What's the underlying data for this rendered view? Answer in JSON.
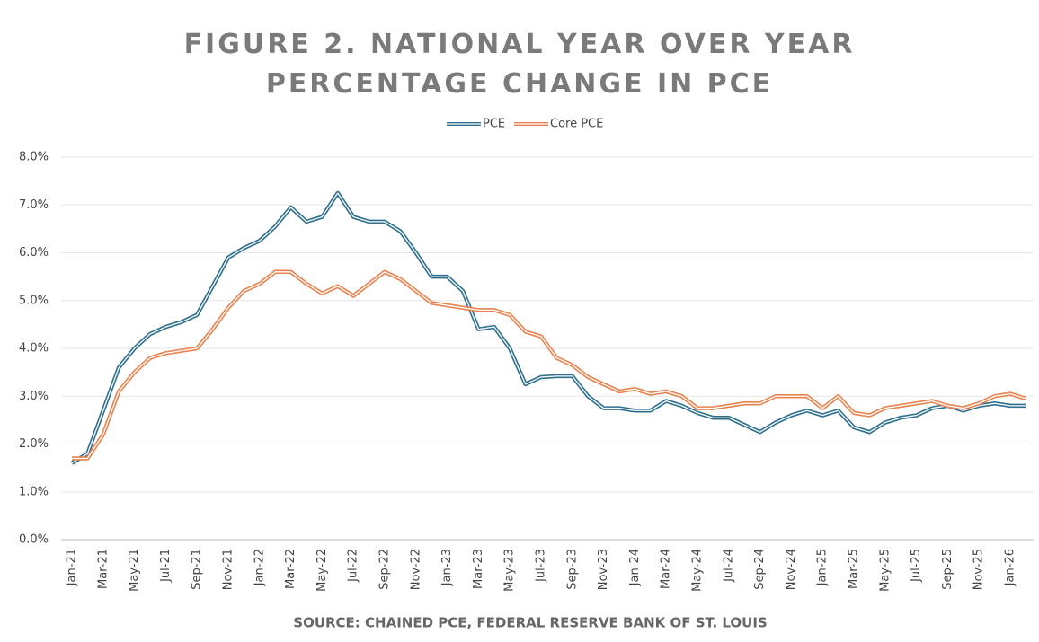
{
  "chart_data": {
    "type": "line",
    "title": "FIGURE 2. NATIONAL YEAR OVER YEAR PERCENTAGE CHANGE IN PCE",
    "source": "SOURCE: CHAINED PCE, FEDERAL RESERVE BANK OF ST. LOUIS",
    "categories": [
      "Jan-21",
      null,
      "Mar-21",
      null,
      "May-21",
      null,
      "Jul-21",
      null,
      "Sep-21",
      null,
      "Nov-21",
      null,
      "Jan-22",
      null,
      "Mar-22",
      null,
      "May-22",
      null,
      "Jul-22",
      null,
      "Sep-22",
      null,
      "Nov-22",
      null,
      "Jan-23",
      null,
      "Mar-23",
      null,
      "May-23",
      null,
      "Jul-23",
      null,
      "Sep-23",
      null,
      "Nov-23",
      null,
      "Jan-24",
      null,
      "Mar-24",
      null,
      "May-24",
      null,
      "Jul-24",
      null,
      "Sep-24",
      null,
      "Nov-24",
      null,
      "Jan-25",
      null,
      "Mar-25",
      null,
      "May-25",
      null,
      "Jul-25",
      null,
      "Sep-25",
      null,
      "Nov-25",
      null,
      "Jan-26",
      null
    ],
    "series": [
      {
        "name": "PCE",
        "color": "#2e6f8e",
        "values": [
          1.6,
          1.8,
          2.7,
          3.6,
          4.0,
          4.3,
          4.45,
          4.55,
          4.7,
          5.3,
          5.9,
          6.1,
          6.25,
          6.55,
          6.95,
          6.65,
          6.75,
          7.25,
          6.75,
          6.65,
          6.65,
          6.45,
          6.0,
          5.5,
          5.5,
          5.2,
          4.4,
          4.45,
          4.0,
          3.25,
          3.4,
          3.42,
          3.42,
          3.0,
          2.75,
          2.75,
          2.7,
          2.7,
          2.9,
          2.8,
          2.65,
          2.55,
          2.55,
          2.4,
          2.25,
          2.45,
          2.6,
          2.7,
          2.6,
          2.7,
          2.35,
          2.25,
          2.45,
          2.55,
          2.6,
          2.75,
          2.8,
          2.7,
          2.8,
          2.85,
          2.8,
          2.8
        ]
      },
      {
        "name": "Core PCE",
        "color": "#e8834f",
        "values": [
          1.7,
          1.7,
          2.2,
          3.1,
          3.5,
          3.8,
          3.9,
          3.95,
          4.0,
          4.4,
          4.85,
          5.2,
          5.35,
          5.6,
          5.6,
          5.35,
          5.15,
          5.3,
          5.1,
          5.35,
          5.6,
          5.45,
          5.2,
          4.95,
          4.9,
          4.85,
          4.8,
          4.8,
          4.7,
          4.35,
          4.25,
          3.8,
          3.65,
          3.4,
          3.25,
          3.1,
          3.15,
          3.05,
          3.1,
          3.0,
          2.75,
          2.75,
          2.8,
          2.85,
          2.85,
          3.0,
          3.0,
          3.0,
          2.75,
          3.0,
          2.65,
          2.6,
          2.75,
          2.8,
          2.85,
          2.9,
          2.8,
          2.75,
          2.85,
          3.0,
          3.05,
          2.95
        ]
      }
    ],
    "ylim": [
      0,
      8
    ],
    "yticks": [
      {
        "value": 0,
        "label": "0.0%"
      },
      {
        "value": 1,
        "label": "1.0%"
      },
      {
        "value": 2,
        "label": "2.0%"
      },
      {
        "value": 3,
        "label": "3.0%"
      },
      {
        "value": 4,
        "label": "4.0%"
      },
      {
        "value": 5,
        "label": "5.0%"
      },
      {
        "value": 6,
        "label": "6.0%"
      },
      {
        "value": 7,
        "label": "7.0%"
      },
      {
        "value": 8,
        "label": "8.0%"
      }
    ],
    "grid": true,
    "legend": "top"
  }
}
